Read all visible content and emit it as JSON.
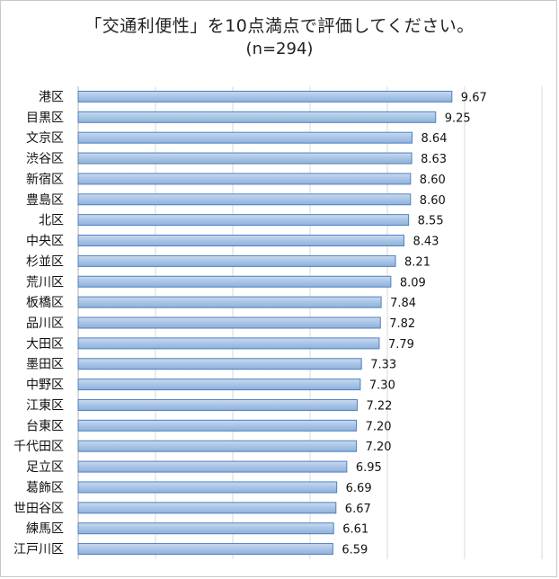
{
  "chart_data": {
    "type": "bar",
    "orientation": "horizontal",
    "title": "「交通利便性」を10点満点で評価してください。",
    "subtitle": "(n=294)",
    "categories": [
      "港区",
      "目黒区",
      "文京区",
      "渋谷区",
      "新宿区",
      "豊島区",
      "北区",
      "中央区",
      "杉並区",
      "荒川区",
      "板橋区",
      "品川区",
      "大田区",
      "墨田区",
      "中野区",
      "江東区",
      "台東区",
      "千代田区",
      "足立区",
      "葛飾区",
      "世田谷区",
      "練馬区",
      "江戸川区"
    ],
    "values": [
      9.67,
      9.25,
      8.64,
      8.63,
      8.6,
      8.6,
      8.55,
      8.43,
      8.21,
      8.09,
      7.84,
      7.82,
      7.79,
      7.33,
      7.3,
      7.22,
      7.2,
      7.2,
      6.95,
      6.69,
      6.67,
      6.61,
      6.59
    ],
    "value_labels": [
      "9.67",
      "9.25",
      "8.64",
      "8.63",
      "8.60",
      "8.60",
      "8.55",
      "8.43",
      "8.21",
      "8.09",
      "7.84",
      "7.82",
      "7.79",
      "7.33",
      "7.30",
      "7.22",
      "7.20",
      "7.20",
      "6.95",
      "6.69",
      "6.67",
      "6.61",
      "6.59"
    ],
    "xlim": [
      0,
      12
    ],
    "grid": true,
    "bar_color": "#a9c4e6",
    "bar_edge_color": "#4f81bd"
  }
}
